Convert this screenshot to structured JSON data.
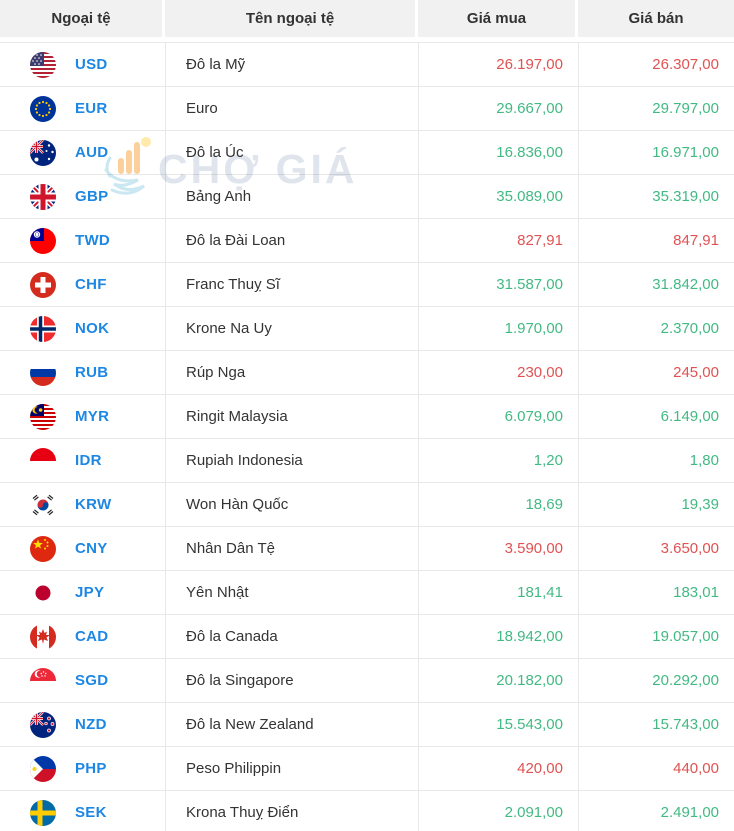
{
  "table": {
    "columns": [
      {
        "label": "Ngoại tệ"
      },
      {
        "label": "Tên ngoại tệ"
      },
      {
        "label": "Giá mua"
      },
      {
        "label": "Giá bán"
      }
    ],
    "rows": [
      {
        "code": "USD",
        "name": "Đô la Mỹ",
        "buy": "26.197,00",
        "sell": "26.307,00",
        "direction": "down",
        "flag": "flag-usd"
      },
      {
        "code": "EUR",
        "name": "Euro",
        "buy": "29.667,00",
        "sell": "29.797,00",
        "direction": "up",
        "flag": "flag-eur"
      },
      {
        "code": "AUD",
        "name": "Đô la Úc",
        "buy": "16.836,00",
        "sell": "16.971,00",
        "direction": "up",
        "flag": "flag-aud"
      },
      {
        "code": "GBP",
        "name": "Bảng Anh",
        "buy": "35.089,00",
        "sell": "35.319,00",
        "direction": "up",
        "flag": "flag-gbp"
      },
      {
        "code": "TWD",
        "name": "Đô la Đài Loan",
        "buy": "827,91",
        "sell": "847,91",
        "direction": "down",
        "flag": "flag-twd"
      },
      {
        "code": "CHF",
        "name": "Franc Thuỵ Sĩ",
        "buy": "31.587,00",
        "sell": "31.842,00",
        "direction": "up",
        "flag": "flag-chf"
      },
      {
        "code": "NOK",
        "name": "Krone Na Uy",
        "buy": "1.970,00",
        "sell": "2.370,00",
        "direction": "up",
        "flag": "flag-nok"
      },
      {
        "code": "RUB",
        "name": "Rúp Nga",
        "buy": "230,00",
        "sell": "245,00",
        "direction": "down",
        "flag": "flag-rub"
      },
      {
        "code": "MYR",
        "name": "Ringit Malaysia",
        "buy": "6.079,00",
        "sell": "6.149,00",
        "direction": "up",
        "flag": "flag-myr"
      },
      {
        "code": "IDR",
        "name": "Rupiah Indonesia",
        "buy": "1,20",
        "sell": "1,80",
        "direction": "up",
        "flag": "flag-idr"
      },
      {
        "code": "KRW",
        "name": "Won Hàn Quốc",
        "buy": "18,69",
        "sell": "19,39",
        "direction": "up",
        "flag": "flag-krw"
      },
      {
        "code": "CNY",
        "name": "Nhân Dân Tệ",
        "buy": "3.590,00",
        "sell": "3.650,00",
        "direction": "down",
        "flag": "flag-cny"
      },
      {
        "code": "JPY",
        "name": "Yên Nhật",
        "buy": "181,41",
        "sell": "183,01",
        "direction": "up",
        "flag": "flag-jpy"
      },
      {
        "code": "CAD",
        "name": "Đô la Canada",
        "buy": "18.942,00",
        "sell": "19.057,00",
        "direction": "up",
        "flag": "flag-cad"
      },
      {
        "code": "SGD",
        "name": "Đô la Singapore",
        "buy": "20.182,00",
        "sell": "20.292,00",
        "direction": "up",
        "flag": "flag-sgd"
      },
      {
        "code": "NZD",
        "name": "Đô la New Zealand",
        "buy": "15.543,00",
        "sell": "15.743,00",
        "direction": "up",
        "flag": "flag-nzd"
      },
      {
        "code": "PHP",
        "name": "Peso Philippin",
        "buy": "420,00",
        "sell": "440,00",
        "direction": "down",
        "flag": "flag-php"
      },
      {
        "code": "SEK",
        "name": "Krona Thuỵ Điển",
        "buy": "2.091,00",
        "sell": "2.491,00",
        "direction": "up",
        "flag": "flag-sek"
      }
    ]
  },
  "watermark": {
    "text": "CHỢ GIÁ",
    "logo_icon": "cho-gia-logo"
  },
  "colors": {
    "up": "#42b983",
    "down": "#e05252",
    "code": "#1d87e4",
    "header_bg": "#f1f1f1",
    "header_text": "#333333",
    "row_border": "#e8e8e8",
    "name_text": "#333333",
    "watermark_text": "#c7d0de"
  }
}
